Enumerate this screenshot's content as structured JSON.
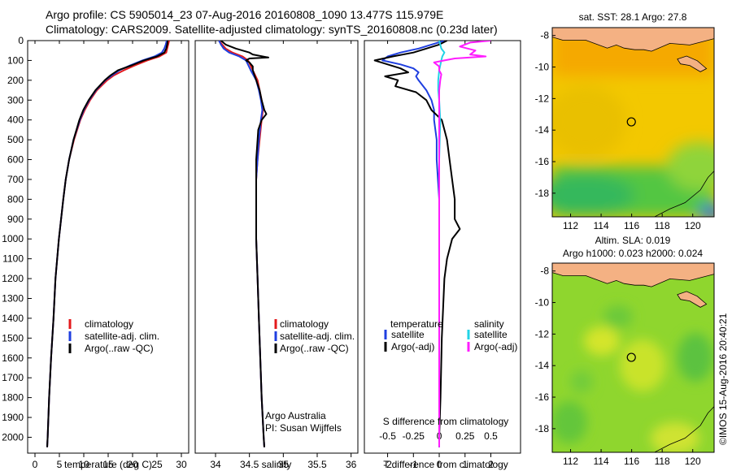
{
  "header": {
    "line1": "Argo profile: CS 5905014_23 07-Aug-2016 20160808_1090 13.477S 115.979E",
    "line2": "Climatology: CARS2009. Satellite-adjusted climatology: synTS_20160808.nc (0.23d later)"
  },
  "colors": {
    "climatology": "#e31a1c",
    "satellite": "#1f3fe0",
    "argo": "#000000",
    "sal_satellite": "#22d3e6",
    "sal_argo": "#ff1cff",
    "land": "#f4b183"
  },
  "chart_data": [
    {
      "type": "line",
      "id": "temperature",
      "xlabel": "temperature (deg C)",
      "ylabel": "",
      "xlim": [
        -1.5,
        31.5
      ],
      "ylim": [
        2080,
        0
      ],
      "xticks": [
        0,
        5,
        10,
        15,
        20,
        25,
        30
      ],
      "yticks": [
        0,
        100,
        200,
        300,
        400,
        500,
        600,
        700,
        800,
        900,
        1000,
        1100,
        1200,
        1300,
        1400,
        1500,
        1600,
        1700,
        1800,
        1900,
        2000
      ],
      "legend": [
        "climatology",
        "satellite-adj. clim.",
        "Argo(..raw -QC)"
      ],
      "series": [
        {
          "name": "climatology",
          "depth": [
            0,
            20,
            40,
            60,
            80,
            100,
            125,
            150,
            175,
            200,
            250,
            300,
            350,
            400,
            500,
            600,
            700,
            800,
            1000,
            1200,
            1400,
            1600,
            1800,
            2000,
            2050
          ],
          "values": [
            27.5,
            27.3,
            27.1,
            26.9,
            25.5,
            23.0,
            20.5,
            18.2,
            16.2,
            14.8,
            12.7,
            11.3,
            10.2,
            9.3,
            8.0,
            7.0,
            6.3,
            5.8,
            4.9,
            4.2,
            3.8,
            3.3,
            2.9,
            2.6,
            2.5
          ]
        },
        {
          "name": "satellite-adj. clim.",
          "depth": [
            0,
            20,
            40,
            60,
            80,
            100,
            125,
            150,
            175,
            200,
            250,
            300,
            350,
            400,
            500,
            600,
            700,
            800,
            1000,
            1200,
            1400,
            1600,
            1800,
            2000,
            2050
          ],
          "values": [
            27.0,
            26.8,
            26.5,
            26.0,
            24.5,
            22.0,
            19.5,
            17.3,
            15.8,
            14.4,
            12.5,
            11.1,
            10.0,
            9.2,
            7.9,
            7.0,
            6.3,
            5.8,
            4.9,
            4.2,
            3.8,
            3.3,
            2.9,
            2.6,
            2.5
          ]
        },
        {
          "name": "Argo(..raw -QC)",
          "depth": [
            0,
            20,
            40,
            60,
            80,
            100,
            125,
            150,
            175,
            200,
            250,
            300,
            350,
            400,
            500,
            600,
            700,
            800,
            1000,
            1200,
            1400,
            1600,
            1800,
            2000,
            2050
          ],
          "values": [
            27.2,
            27.1,
            26.9,
            26.5,
            25.0,
            22.3,
            19.8,
            17.0,
            15.5,
            14.3,
            12.4,
            11.0,
            9.9,
            9.1,
            7.9,
            7.0,
            6.3,
            5.8,
            4.9,
            4.2,
            3.8,
            3.3,
            2.9,
            2.6,
            2.5
          ]
        }
      ]
    },
    {
      "type": "line",
      "id": "salinity",
      "xlabel": "salinity",
      "ylabel": "",
      "xlim": [
        33.7,
        36.1
      ],
      "ylim": [
        2080,
        0
      ],
      "xticks": [
        34,
        34.5,
        35,
        35.5,
        36
      ],
      "legend": [
        "climatology",
        "satellite-adj. clim.",
        "Argo(..raw -QC)"
      ],
      "annotation": [
        "Argo Australia",
        "PI: Susan Wijffels"
      ],
      "series": [
        {
          "name": "climatology",
          "depth": [
            0,
            20,
            40,
            60,
            80,
            100,
            150,
            200,
            250,
            300,
            350,
            400,
            500,
            600,
            700,
            800,
            1000,
            1200,
            1400,
            1600,
            1800,
            2000,
            2050
          ],
          "values": [
            34.05,
            34.1,
            34.15,
            34.25,
            34.4,
            34.48,
            34.55,
            34.62,
            34.65,
            34.68,
            34.7,
            34.68,
            34.65,
            34.62,
            34.6,
            34.6,
            34.6,
            34.62,
            34.64,
            34.66,
            34.68,
            34.71,
            34.72
          ]
        },
        {
          "name": "satellite-adj. clim.",
          "depth": [
            0,
            20,
            40,
            60,
            80,
            100,
            150,
            200,
            250,
            300,
            350,
            400,
            500,
            600,
            700,
            800,
            1000,
            1200,
            1400,
            1600,
            1800,
            2000,
            2050
          ],
          "values": [
            34.05,
            34.08,
            34.12,
            34.2,
            34.35,
            34.45,
            34.52,
            34.6,
            34.64,
            34.67,
            34.69,
            34.67,
            34.64,
            34.62,
            34.6,
            34.6,
            34.6,
            34.62,
            34.64,
            34.66,
            34.68,
            34.71,
            34.72
          ]
        },
        {
          "name": "Argo(..raw -QC)",
          "depth": [
            0,
            20,
            40,
            60,
            70,
            85,
            90,
            100,
            110,
            130,
            150,
            200,
            250,
            300,
            350,
            370,
            400,
            450,
            500,
            600,
            700,
            800,
            1000,
            1200,
            1400,
            1600,
            1800,
            2000,
            2050
          ],
          "values": [
            34.08,
            34.15,
            34.3,
            34.5,
            34.55,
            34.78,
            34.5,
            34.45,
            34.5,
            34.55,
            34.55,
            34.6,
            34.65,
            34.68,
            34.72,
            34.75,
            34.68,
            34.63,
            34.62,
            34.6,
            34.6,
            34.6,
            34.6,
            34.62,
            34.64,
            34.66,
            34.68,
            34.71,
            34.72
          ]
        }
      ]
    },
    {
      "type": "line",
      "id": "difference",
      "xlabel": "T difference from climatology",
      "ylabel": "",
      "top_axis_label": "S difference from climatology",
      "xlim": [
        -2.9,
        3.15
      ],
      "ylim": [
        2080,
        0
      ],
      "xticks": [
        -2,
        -1,
        0,
        1,
        2
      ],
      "top_ticks": [
        -0.5,
        -0.25,
        0,
        0.25,
        0.5
      ],
      "top_tick_labels": [
        "-0.5",
        "-0.25",
        "0",
        "0.25",
        "0.5"
      ],
      "legend_headers": [
        "temperature",
        "salinity"
      ],
      "legend": [
        "satellite",
        "Argo(-adj)",
        "satellite",
        "Argo(-adj)"
      ],
      "series": [
        {
          "name": "satellite",
          "quantity": "temperature",
          "depth": [
            0,
            20,
            40,
            60,
            80,
            100,
            120,
            140,
            160,
            180,
            200,
            250,
            300,
            350,
            400,
            500,
            600,
            800,
            1000,
            1200,
            1500,
            1800,
            2000,
            2050
          ],
          "values": [
            0.2,
            -0.3,
            -0.8,
            -1.5,
            -2.0,
            -2.2,
            -1.5,
            -1.0,
            -0.8,
            -0.9,
            -0.8,
            -0.5,
            -0.3,
            -0.2,
            -0.2,
            -0.1,
            -0.1,
            0,
            0,
            0,
            0,
            0,
            0,
            0
          ]
        },
        {
          "name": "Argo(-adj)",
          "quantity": "temperature",
          "depth": [
            0,
            20,
            40,
            60,
            80,
            100,
            120,
            140,
            160,
            180,
            200,
            230,
            260,
            300,
            350,
            400,
            450,
            500,
            600,
            700,
            800,
            900,
            950,
            1000,
            1100,
            1200,
            1500,
            1800,
            2000,
            2050
          ],
          "values": [
            0.3,
            0,
            -0.5,
            -1.0,
            -1.8,
            -2.5,
            -2.0,
            -1.5,
            -1.2,
            -2.1,
            -1.6,
            -1.7,
            -0.9,
            -0.5,
            -0.3,
            0.1,
            0.2,
            0.3,
            0.4,
            0.5,
            0.6,
            0.6,
            0.8,
            0.5,
            0.3,
            0.2,
            0.1,
            0.05,
            0,
            0
          ]
        },
        {
          "name": "satellite",
          "quantity": "salinity",
          "depth": [
            0,
            20,
            40,
            60,
            80,
            100,
            150,
            200,
            250,
            300,
            400,
            600,
            800,
            1000,
            1500,
            2000,
            2050
          ],
          "values": [
            0,
            0.01,
            0.02,
            0.05,
            0.03,
            0.02,
            0,
            -0.01,
            -0.01,
            0,
            0.01,
            0,
            0,
            0,
            0,
            0,
            0
          ]
        },
        {
          "name": "Argo(-adj)",
          "quantity": "salinity",
          "depth": [
            0,
            10,
            30,
            50,
            70,
            80,
            90,
            100,
            110,
            130,
            150,
            170,
            200,
            250,
            300,
            400,
            600,
            800,
            1000,
            1500,
            2000,
            2050
          ],
          "values": [
            0.5,
            0.3,
            0.2,
            0.35,
            0.3,
            0.45,
            0.15,
            0.05,
            -0.05,
            0,
            0,
            0.02,
            0.01,
            0,
            0,
            0,
            0,
            0,
            0,
            0,
            0,
            0
          ]
        }
      ]
    },
    {
      "type": "heatmap",
      "id": "sst_map",
      "title": "sat. SST: 28.1  Argo: 27.8",
      "xlim": [
        110.8,
        121.4
      ],
      "ylim": [
        -19.5,
        -7.5
      ],
      "xticks": [
        112,
        114,
        116,
        118,
        120
      ],
      "yticks": [
        -8,
        -10,
        -12,
        -14,
        -16,
        -18
      ],
      "marker": [
        115.979,
        -13.477
      ]
    },
    {
      "type": "heatmap",
      "id": "sla_map",
      "title": "Altim. SLA: 0.019",
      "subtitle": "Argo h1000: 0.023 h2000: 0.024",
      "xlim": [
        110.8,
        121.4
      ],
      "ylim": [
        -19.5,
        -7.5
      ],
      "xticks": [
        112,
        114,
        116,
        118,
        120
      ],
      "yticks": [
        -8,
        -10,
        -12,
        -14,
        -16,
        -18
      ],
      "marker": [
        115.979,
        -13.477
      ]
    }
  ],
  "credit": "©IMOS 15-Aug-2016 20:40:21"
}
